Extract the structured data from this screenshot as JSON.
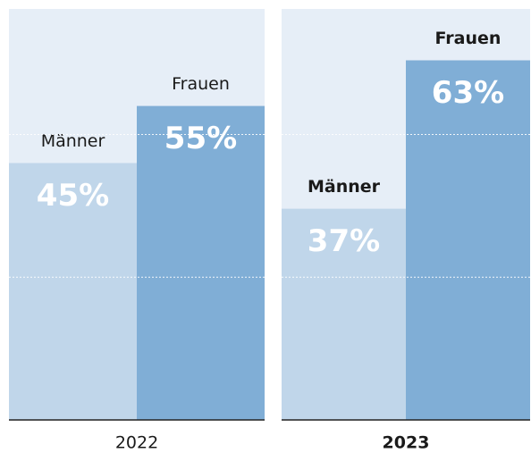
{
  "chart_data": [
    {
      "type": "bar",
      "title": "2022",
      "categories": [
        "Männer",
        "Frauen"
      ],
      "values": [
        45,
        55
      ],
      "value_labels": [
        "45%",
        "55%"
      ],
      "colors": [
        "#c0d6ea",
        "#80aed6"
      ],
      "ylim": [
        0,
        72
      ],
      "yticks": [
        25,
        50
      ],
      "grid": true,
      "highlight": false
    },
    {
      "type": "bar",
      "title": "2023",
      "categories": [
        "Männer",
        "Frauen"
      ],
      "values": [
        37,
        63
      ],
      "value_labels": [
        "37%",
        "63%"
      ],
      "colors": [
        "#c0d6ea",
        "#80aed6"
      ],
      "ylim": [
        0,
        72
      ],
      "yticks": [
        25,
        50
      ],
      "grid": true,
      "highlight": true
    }
  ]
}
